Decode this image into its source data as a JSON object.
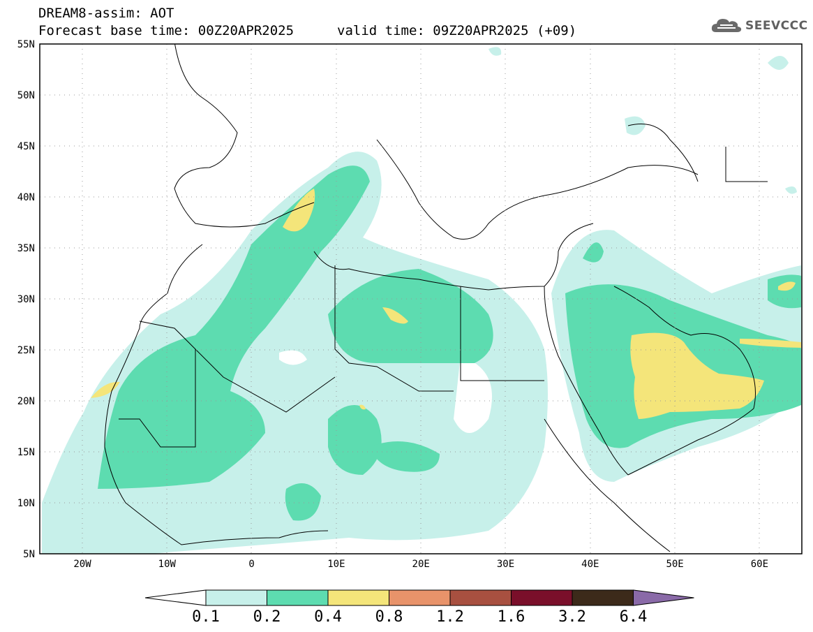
{
  "header": {
    "model_title": "DREAM8-assim: AOT",
    "base_time": "Forecast base time: 00Z20APR2025",
    "valid_time": "valid time: 09Z20APR2025 (+09)"
  },
  "logo": {
    "text": "SEEVCCC",
    "icon": "cloud-icon"
  },
  "map": {
    "lat_labels": [
      "55N",
      "50N",
      "45N",
      "40N",
      "35N",
      "30N",
      "25N",
      "20N",
      "15N",
      "10N",
      "5N"
    ],
    "lon_labels": [
      "20W",
      "10W",
      "0",
      "10E",
      "20E",
      "30E",
      "40E",
      "50E",
      "60E"
    ],
    "lon_range": [
      -25,
      65
    ],
    "lat_range": [
      5,
      55
    ],
    "gridlines": "dotted"
  },
  "colorbar": {
    "labels": [
      "0.1",
      "0.2",
      "0.4",
      "0.8",
      "1.2",
      "1.6",
      "3.2",
      "6.4"
    ],
    "colors": [
      "#ffffff",
      "#c7f0ea",
      "#5ddcb0",
      "#f4e57a",
      "#e8936a",
      "#a85040",
      "#7a0f2a",
      "#3c2a1a",
      "#8a6aa8"
    ]
  }
}
